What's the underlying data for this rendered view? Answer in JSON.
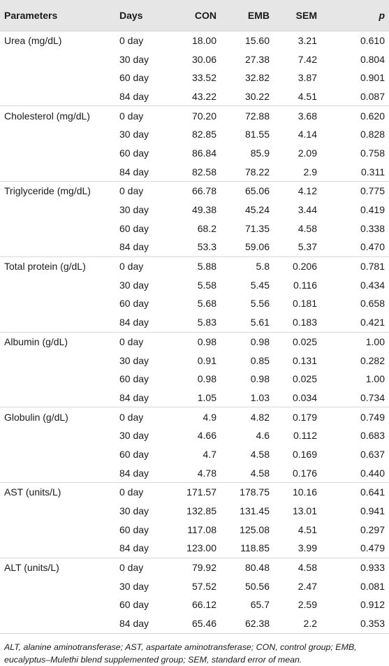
{
  "table": {
    "headers": [
      "Parameters",
      "Days",
      "CON",
      "EMB",
      "SEM",
      "p"
    ],
    "groups": [
      {
        "parameter": "Urea (mg/dL)",
        "rows": [
          {
            "day": "0 day",
            "con": "18.00",
            "emb": "15.60",
            "sem": "3.21",
            "p": "0.610"
          },
          {
            "day": "30 day",
            "con": "30.06",
            "emb": "27.38",
            "sem": "7.42",
            "p": "0.804"
          },
          {
            "day": "60 day",
            "con": "33.52",
            "emb": "32.82",
            "sem": "3.87",
            "p": "0.901"
          },
          {
            "day": "84 day",
            "con": "43.22",
            "emb": "30.22",
            "sem": "4.51",
            "p": "0.087"
          }
        ]
      },
      {
        "parameter": "Cholesterol (mg/dL)",
        "rows": [
          {
            "day": "0 day",
            "con": "70.20",
            "emb": "72.88",
            "sem": "3.68",
            "p": "0.620"
          },
          {
            "day": "30 day",
            "con": "82.85",
            "emb": "81.55",
            "sem": "4.14",
            "p": "0.828"
          },
          {
            "day": "60 day",
            "con": "86.84",
            "emb": "85.9",
            "sem": "2.09",
            "p": "0.758"
          },
          {
            "day": "84 day",
            "con": "82.58",
            "emb": "78.22",
            "sem": "2.9",
            "p": "0.311"
          }
        ]
      },
      {
        "parameter": "Triglyceride (mg/dL)",
        "rows": [
          {
            "day": "0 day",
            "con": "66.78",
            "emb": "65.06",
            "sem": "4.12",
            "p": "0.775"
          },
          {
            "day": "30 day",
            "con": "49.38",
            "emb": "45.24",
            "sem": "3.44",
            "p": "0.419"
          },
          {
            "day": "60 day",
            "con": "68.2",
            "emb": "71.35",
            "sem": "4.58",
            "p": "0.338"
          },
          {
            "day": "84 day",
            "con": "53.3",
            "emb": "59.06",
            "sem": "5.37",
            "p": "0.470"
          }
        ]
      },
      {
        "parameter": "Total protein (g/dL)",
        "rows": [
          {
            "day": "0 day",
            "con": "5.88",
            "emb": "5.8",
            "sem": "0.206",
            "p": "0.781"
          },
          {
            "day": "30 day",
            "con": "5.58",
            "emb": "5.45",
            "sem": "0.116",
            "p": "0.434"
          },
          {
            "day": "60 day",
            "con": "5.68",
            "emb": "5.56",
            "sem": "0.181",
            "p": "0.658"
          },
          {
            "day": "84 day",
            "con": "5.83",
            "emb": "5.61",
            "sem": "0.183",
            "p": "0.421"
          }
        ]
      },
      {
        "parameter": "Albumin (g/dL)",
        "rows": [
          {
            "day": "0 day",
            "con": "0.98",
            "emb": "0.98",
            "sem": "0.025",
            "p": "1.00"
          },
          {
            "day": "30 day",
            "con": "0.91",
            "emb": "0.85",
            "sem": "0.131",
            "p": "0.282"
          },
          {
            "day": "60 day",
            "con": "0.98",
            "emb": "0.98",
            "sem": "0.025",
            "p": "1.00"
          },
          {
            "day": "84 day",
            "con": "1.05",
            "emb": "1.03",
            "sem": "0.034",
            "p": "0.734"
          }
        ]
      },
      {
        "parameter": "Globulin (g/dL)",
        "rows": [
          {
            "day": "0 day",
            "con": "4.9",
            "emb": "4.82",
            "sem": "0.179",
            "p": "0.749"
          },
          {
            "day": "30 day",
            "con": "4.66",
            "emb": "4.6",
            "sem": "0.112",
            "p": "0.683"
          },
          {
            "day": "60 day",
            "con": "4.7",
            "emb": "4.58",
            "sem": "0.169",
            "p": "0.637"
          },
          {
            "day": "84 day",
            "con": "4.78",
            "emb": "4.58",
            "sem": "0.176",
            "p": "0.440"
          }
        ]
      },
      {
        "parameter": "AST (units/L)",
        "rows": [
          {
            "day": "0 day",
            "con": "171.57",
            "emb": "178.75",
            "sem": "10.16",
            "p": "0.641"
          },
          {
            "day": "30 day",
            "con": "132.85",
            "emb": "131.45",
            "sem": "13.01",
            "p": "0.941"
          },
          {
            "day": "60 day",
            "con": "117.08",
            "emb": "125.08",
            "sem": "4.51",
            "p": "0.297"
          },
          {
            "day": "84 day",
            "con": "123.00",
            "emb": "118.85",
            "sem": "3.99",
            "p": "0.479"
          }
        ]
      },
      {
        "parameter": "ALT (units/L)",
        "rows": [
          {
            "day": "0 day",
            "con": "79.92",
            "emb": "80.48",
            "sem": "4.58",
            "p": "0.933"
          },
          {
            "day": "30 day",
            "con": "57.52",
            "emb": "50.56",
            "sem": "2.47",
            "p": "0.081"
          },
          {
            "day": "60 day",
            "con": "66.12",
            "emb": "65.7",
            "sem": "2.59",
            "p": "0.912"
          },
          {
            "day": "84 day",
            "con": "65.46",
            "emb": "62.38",
            "sem": "2.2",
            "p": "0.353"
          }
        ]
      }
    ]
  },
  "footnote": "ALT, alanine aminotransferase; AST, aspartate aminotransferase; CON, control group; EMB, eucalyptus–Mulethi blend supplemented group; SEM, standard error of mean.",
  "colors": {
    "header_bg": "#e6e6e6",
    "rule": "#d7d7d7",
    "text": "#1a1a1a"
  }
}
